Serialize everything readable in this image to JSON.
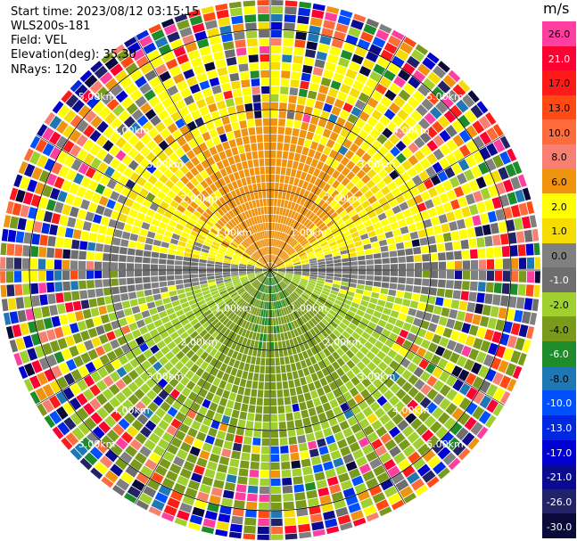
{
  "header": {
    "start_time": "Start time: 2023/08/12 03:15:15",
    "instrument": "WLS200s-181",
    "field": "Field: VEL",
    "elevation": "Elevation(deg): 35.30",
    "nrays": "NRays: 120"
  },
  "colorbar": {
    "unit": "m/s",
    "levels": [
      {
        "label": "26.0",
        "color": "#ff3fa0",
        "text": "#000000"
      },
      {
        "label": "21.0",
        "color": "#ff0033",
        "text": "#ffffff"
      },
      {
        "label": "17.0",
        "color": "#ff1a1a",
        "text": "#000000"
      },
      {
        "label": "13.0",
        "color": "#ff4a14",
        "text": "#000000"
      },
      {
        "label": "10.0",
        "color": "#ff6c3c",
        "text": "#000000"
      },
      {
        "label": "8.0",
        "color": "#f88070",
        "text": "#000000"
      },
      {
        "label": "6.0",
        "color": "#f09410",
        "text": "#000000"
      },
      {
        "label": "2.0",
        "color": "#ffff00",
        "text": "#000000"
      },
      {
        "label": "1.0",
        "color": "#f6dc00",
        "text": "#000000"
      },
      {
        "label": "0.0",
        "color": "#808080",
        "text": "#000000"
      },
      {
        "label": "-1.0",
        "color": "#6e6e6e",
        "text": "#ffffff"
      },
      {
        "label": "-2.0",
        "color": "#a0d030",
        "text": "#000000"
      },
      {
        "label": "-4.0",
        "color": "#7a9a1c",
        "text": "#000000"
      },
      {
        "label": "-6.0",
        "color": "#1e8c28",
        "text": "#ffffff"
      },
      {
        "label": "-8.0",
        "color": "#1f78b4",
        "text": "#000000"
      },
      {
        "label": "-10.0",
        "color": "#0050ff",
        "text": "#ffffff"
      },
      {
        "label": "-13.0",
        "color": "#0028e0",
        "text": "#ffffff"
      },
      {
        "label": "-17.0",
        "color": "#0000d0",
        "text": "#ffffff"
      },
      {
        "label": "-21.0",
        "color": "#0a0a90",
        "text": "#ffffff"
      },
      {
        "label": "-26.0",
        "color": "#222266",
        "text": "#ffffff"
      },
      {
        "label": "-30.0",
        "color": "#0a0a3a",
        "text": "#ffffff"
      }
    ]
  },
  "range_rings": {
    "labels": [
      "1.00km",
      "2.00km",
      "3.00km",
      "4.00km",
      "5.00km"
    ]
  },
  "colors": {
    "grid": "#000000",
    "ring_label": "#ffffff"
  }
}
